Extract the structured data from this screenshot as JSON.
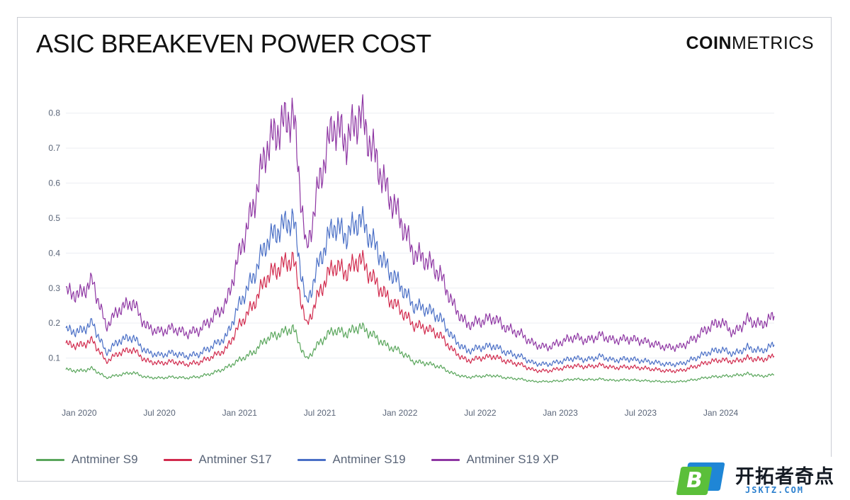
{
  "header": {
    "title": "ASIC BREAKEVEN POWER COST",
    "brand_bold": "COIN",
    "brand_light": "METRICS"
  },
  "watermark": {
    "brand_cn": "开拓者奇点",
    "brand_en": "JSKTZ.COM",
    "badge_letter": "B"
  },
  "colors": {
    "s9": "#5aa65c",
    "s17": "#d12a4d",
    "s19": "#4a6fc6",
    "s19xp": "#8e36a3",
    "grid": "#eceef2",
    "tick": "#5a6578"
  },
  "chart_data": {
    "type": "line",
    "title": "ASIC BREAKEVEN POWER COST",
    "xlabel": "",
    "ylabel": "",
    "x_start": "2019-12",
    "x_end": "2024-05",
    "ylim": [
      0,
      0.85
    ],
    "yticks": [
      0.1,
      0.2,
      0.3,
      0.4,
      0.5,
      0.6,
      0.7,
      0.8
    ],
    "ytick_labels": [
      "0.1",
      "0.2",
      "0.3",
      "0.4",
      "0.5",
      "0.6",
      "0.7",
      "0.8"
    ],
    "xticks": [
      "2020-01",
      "2020-07",
      "2021-01",
      "2021-07",
      "2022-01",
      "2022-07",
      "2023-01",
      "2023-07",
      "2024-01"
    ],
    "xtick_labels": [
      "Jan 2020",
      "Jul 2020",
      "Jan 2021",
      "Jul 2021",
      "Jan 2022",
      "Jul 2022",
      "Jan 2023",
      "Jul 2023",
      "Jan 2024"
    ],
    "grid": true,
    "legend_position": "bottom-left",
    "series": [
      {
        "name": "Antminer S9",
        "color": "#5aa65c",
        "x": [
          "2019-12",
          "2020-01",
          "2020-02",
          "2020-03",
          "2020-04",
          "2020-05",
          "2020-06",
          "2020-07",
          "2020-08",
          "2020-09",
          "2020-10",
          "2020-11",
          "2020-12",
          "2021-01",
          "2021-02",
          "2021-03",
          "2021-04",
          "2021-05",
          "2021-06",
          "2021-07",
          "2021-08",
          "2021-09",
          "2021-10",
          "2021-11",
          "2021-12",
          "2022-01",
          "2022-02",
          "2022-03",
          "2022-04",
          "2022-05",
          "2022-06",
          "2022-07",
          "2022-08",
          "2022-09",
          "2022-10",
          "2022-11",
          "2022-12",
          "2023-01",
          "2023-02",
          "2023-03",
          "2023-04",
          "2023-05",
          "2023-06",
          "2023-07",
          "2023-08",
          "2023-09",
          "2023-10",
          "2023-11",
          "2023-12",
          "2024-01",
          "2024-02",
          "2024-03",
          "2024-04",
          "2024-05"
        ],
        "y": [
          0.067,
          0.063,
          0.07,
          0.044,
          0.052,
          0.059,
          0.045,
          0.043,
          0.046,
          0.043,
          0.047,
          0.057,
          0.072,
          0.095,
          0.115,
          0.155,
          0.17,
          0.185,
          0.095,
          0.145,
          0.18,
          0.17,
          0.19,
          0.165,
          0.135,
          0.12,
          0.09,
          0.085,
          0.075,
          0.055,
          0.045,
          0.048,
          0.05,
          0.043,
          0.04,
          0.033,
          0.033,
          0.035,
          0.04,
          0.038,
          0.04,
          0.036,
          0.038,
          0.036,
          0.034,
          0.032,
          0.033,
          0.038,
          0.045,
          0.048,
          0.05,
          0.055,
          0.048,
          0.052
        ]
      },
      {
        "name": "Antminer S17",
        "color": "#d12a4d",
        "x": [
          "2019-12",
          "2020-01",
          "2020-02",
          "2020-03",
          "2020-04",
          "2020-05",
          "2020-06",
          "2020-07",
          "2020-08",
          "2020-09",
          "2020-10",
          "2020-11",
          "2020-12",
          "2021-01",
          "2021-02",
          "2021-03",
          "2021-04",
          "2021-05",
          "2021-06",
          "2021-07",
          "2021-08",
          "2021-09",
          "2021-10",
          "2021-11",
          "2021-12",
          "2022-01",
          "2022-02",
          "2022-03",
          "2022-04",
          "2022-05",
          "2022-06",
          "2022-07",
          "2022-08",
          "2022-09",
          "2022-10",
          "2022-11",
          "2022-12",
          "2023-01",
          "2023-02",
          "2023-03",
          "2023-04",
          "2023-05",
          "2023-06",
          "2023-07",
          "2023-08",
          "2023-09",
          "2023-10",
          "2023-11",
          "2023-12",
          "2024-01",
          "2024-02",
          "2024-03",
          "2024-04",
          "2024-05"
        ],
        "y": [
          0.14,
          0.135,
          0.15,
          0.09,
          0.115,
          0.125,
          0.092,
          0.085,
          0.09,
          0.082,
          0.088,
          0.105,
          0.125,
          0.195,
          0.25,
          0.33,
          0.36,
          0.385,
          0.19,
          0.29,
          0.365,
          0.345,
          0.385,
          0.325,
          0.275,
          0.24,
          0.195,
          0.185,
          0.165,
          0.12,
          0.092,
          0.1,
          0.105,
          0.09,
          0.082,
          0.065,
          0.063,
          0.07,
          0.078,
          0.075,
          0.08,
          0.072,
          0.075,
          0.072,
          0.068,
          0.063,
          0.064,
          0.075,
          0.088,
          0.095,
          0.09,
          0.1,
          0.095,
          0.105
        ]
      },
      {
        "name": "Antminer S19",
        "color": "#4a6fc6",
        "x": [
          "2019-12",
          "2020-01",
          "2020-02",
          "2020-03",
          "2020-04",
          "2020-05",
          "2020-06",
          "2020-07",
          "2020-08",
          "2020-09",
          "2020-10",
          "2020-11",
          "2020-12",
          "2021-01",
          "2021-02",
          "2021-03",
          "2021-04",
          "2021-05",
          "2021-06",
          "2021-07",
          "2021-08",
          "2021-09",
          "2021-10",
          "2021-11",
          "2021-12",
          "2022-01",
          "2022-02",
          "2022-03",
          "2022-04",
          "2022-05",
          "2022-06",
          "2022-07",
          "2022-08",
          "2022-09",
          "2022-10",
          "2022-11",
          "2022-12",
          "2023-01",
          "2023-02",
          "2023-03",
          "2023-04",
          "2023-05",
          "2023-06",
          "2023-07",
          "2023-08",
          "2023-09",
          "2023-10",
          "2023-11",
          "2023-12",
          "2024-01",
          "2024-02",
          "2024-03",
          "2024-04",
          "2024-05"
        ],
        "y": [
          0.18,
          0.175,
          0.2,
          0.115,
          0.15,
          0.16,
          0.118,
          0.108,
          0.115,
          0.105,
          0.112,
          0.135,
          0.16,
          0.255,
          0.33,
          0.43,
          0.47,
          0.5,
          0.25,
          0.38,
          0.48,
          0.45,
          0.5,
          0.43,
          0.36,
          0.31,
          0.25,
          0.24,
          0.215,
          0.155,
          0.12,
          0.13,
          0.135,
          0.115,
          0.105,
          0.085,
          0.082,
          0.09,
          0.1,
          0.095,
          0.105,
          0.093,
          0.098,
          0.093,
          0.088,
          0.082,
          0.083,
          0.098,
          0.115,
          0.125,
          0.112,
          0.13,
          0.12,
          0.138
        ]
      },
      {
        "name": "Antminer S19 XP",
        "color": "#8e36a3",
        "x": [
          "2019-12",
          "2020-01",
          "2020-02",
          "2020-03",
          "2020-04",
          "2020-05",
          "2020-06",
          "2020-07",
          "2020-08",
          "2020-09",
          "2020-10",
          "2020-11",
          "2020-12",
          "2021-01",
          "2021-02",
          "2021-03",
          "2021-04",
          "2021-05",
          "2021-06",
          "2021-07",
          "2021-08",
          "2021-09",
          "2021-10",
          "2021-11",
          "2021-12",
          "2022-01",
          "2022-02",
          "2022-03",
          "2022-04",
          "2022-05",
          "2022-06",
          "2022-07",
          "2022-08",
          "2022-09",
          "2022-10",
          "2022-11",
          "2022-12",
          "2023-01",
          "2023-02",
          "2023-03",
          "2023-04",
          "2023-05",
          "2023-06",
          "2023-07",
          "2023-08",
          "2023-09",
          "2023-10",
          "2023-11",
          "2023-12",
          "2024-01",
          "2024-02",
          "2024-03",
          "2024-04",
          "2024-05"
        ],
        "y": [
          0.29,
          0.28,
          0.32,
          0.19,
          0.24,
          0.26,
          0.19,
          0.175,
          0.185,
          0.17,
          0.18,
          0.215,
          0.255,
          0.4,
          0.53,
          0.7,
          0.76,
          0.8,
          0.4,
          0.61,
          0.77,
          0.72,
          0.8,
          0.69,
          0.58,
          0.5,
          0.4,
          0.38,
          0.34,
          0.25,
          0.195,
          0.205,
          0.215,
          0.185,
          0.17,
          0.14,
          0.13,
          0.145,
          0.16,
          0.15,
          0.165,
          0.15,
          0.155,
          0.15,
          0.14,
          0.13,
          0.132,
          0.155,
          0.185,
          0.205,
          0.17,
          0.21,
          0.195,
          0.22
        ]
      }
    ]
  }
}
